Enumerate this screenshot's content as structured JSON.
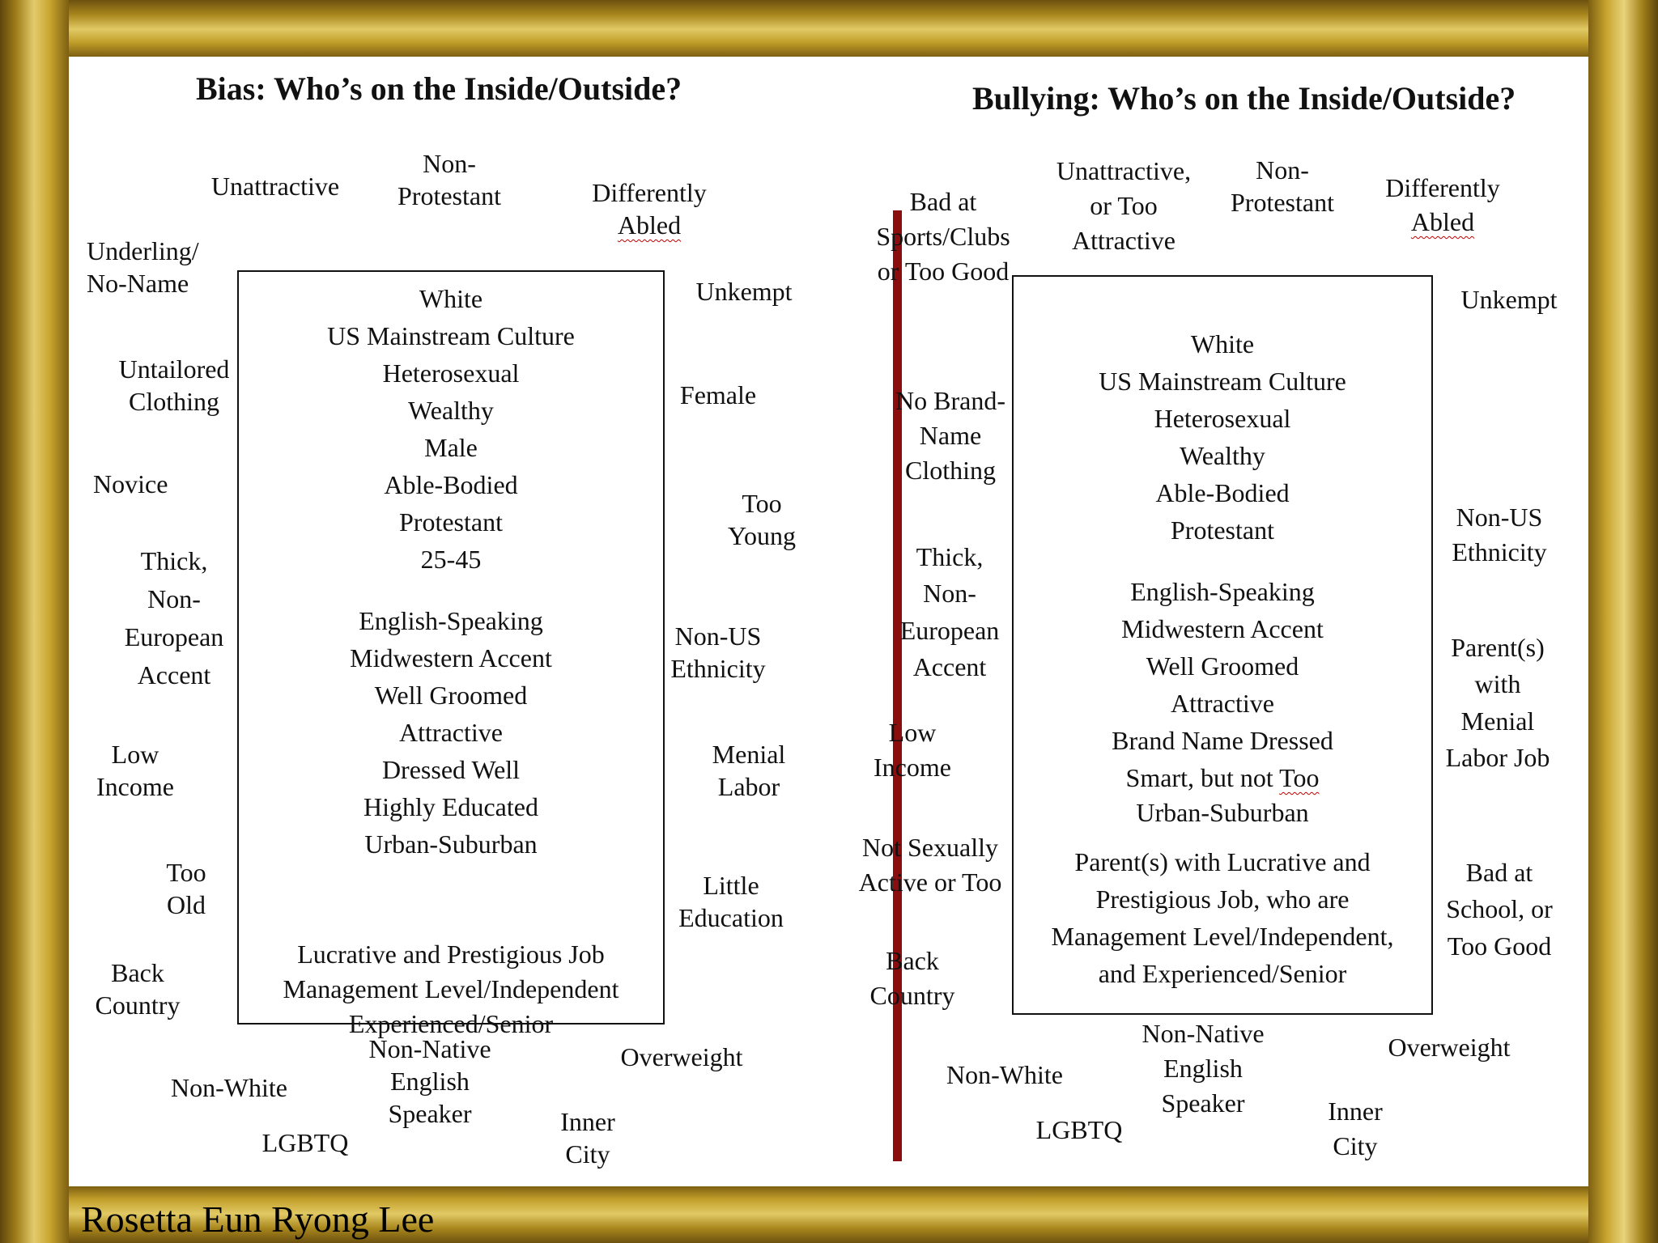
{
  "left_diagram": {
    "title": "Bias: Who’s on the Inside/Outside?",
    "outside": {
      "unattractive": "Unattractive",
      "non_protestant": "Non-\nProtestant",
      "differently": "Differently",
      "abled": "Abled",
      "underling": "Underling/\nNo-Name",
      "unkempt": "Unkempt",
      "untailored": "Untailored\nClothing",
      "female": "Female",
      "novice": "Novice",
      "too_young": "Too\nYoung",
      "thick_accent": "Thick,\nNon-\nEuropean\nAccent",
      "non_us": "Non-US\nEthnicity",
      "low_income": "Low\nIncome",
      "menial": "Menial\nLabor",
      "too_old": "Too\nOld",
      "little_edu": "Little\nEducation",
      "back_country": "Back\nCountry",
      "non_native": "Non-Native\nEnglish\nSpeaker",
      "overweight": "Overweight",
      "non_white": "Non-White",
      "lgbtq": "LGBTQ",
      "inner_city": "Inner\nCity"
    },
    "inside_group1": [
      "White",
      "US Mainstream Culture",
      "Heterosexual",
      "Wealthy",
      "Male",
      "Able-Bodied",
      "Protestant",
      "25-45"
    ],
    "inside_group2": [
      "English-Speaking",
      "Midwestern Accent",
      "Well Groomed",
      "Attractive",
      "Dressed Well",
      "Highly Educated",
      "Urban-Suburban"
    ],
    "inside_group3": [
      "Lucrative and Prestigious Job",
      "Management Level/Independent",
      "Experienced/Senior"
    ]
  },
  "right_diagram": {
    "title": "Bullying: Who’s on the Inside/Outside?",
    "outside": {
      "bad_sports": "Bad at\nSports/Clubs\nor Too Good",
      "unattractive": "Unattractive,\nor Too\nAttractive",
      "non_protestant": "Non-\nProtestant",
      "differently": "Differently",
      "abled": "Abled",
      "unkempt": "Unkempt",
      "no_brand": "No Brand-\nName\nClothing",
      "non_us": "Non-US\nEthnicity",
      "thick_accent": "Thick,\nNon-\nEuropean\nAccent",
      "parents_menial": "Parent(s)\nwith\nMenial\nLabor Job",
      "low_income": "Low\nIncome",
      "not_sexually": "Not Sexually\nActive or Too",
      "bad_school": "Bad at\nSchool, or\nToo Good",
      "back_country": "Back\nCountry",
      "non_native": "Non-Native\nEnglish\nSpeaker",
      "overweight": "Overweight",
      "non_white": "Non-White",
      "lgbtq": "LGBTQ",
      "inner_city": "Inner\nCity"
    },
    "inside_group1": [
      "White",
      "US Mainstream Culture",
      "Heterosexual",
      "Wealthy",
      "Able-Bodied",
      "Protestant"
    ],
    "inside_group2": [
      "English-Speaking",
      "Midwestern Accent",
      "Well Groomed",
      "Attractive",
      "Brand Name Dressed"
    ],
    "smart_prefix": "Smart, but not ",
    "smart_too": "Too",
    "urban": "Urban-Suburban",
    "inside_group3": [
      "Parent(s) with Lucrative and",
      "Prestigious Job, who are",
      "Management Level/Independent,",
      "and Experienced/Senior"
    ]
  },
  "credit": "Rosetta Eun Ryong Lee",
  "colors": {
    "divider": "#8b0e0e",
    "frame_gold": "#c8a42c"
  }
}
